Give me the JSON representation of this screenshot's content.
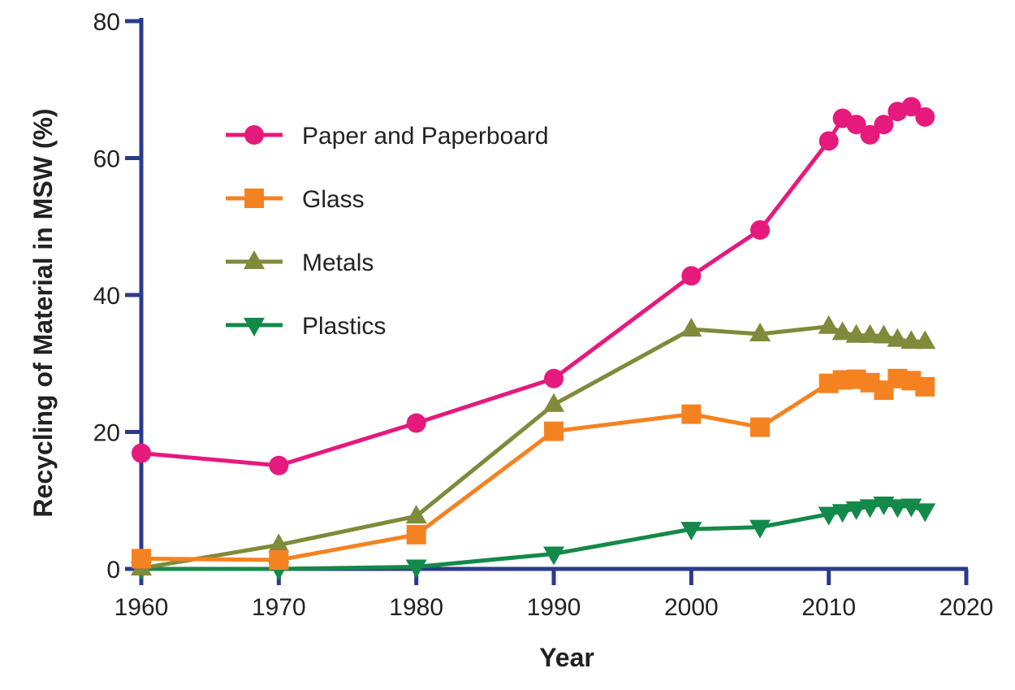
{
  "chart_data": {
    "type": "line",
    "title": "",
    "xlabel": "Year",
    "ylabel": "Recycling of Material in MSW (%)",
    "xlim": [
      1960,
      2020
    ],
    "ylim": [
      0,
      80
    ],
    "x_ticks": [
      "1960",
      "1970",
      "1980",
      "1990",
      "2000",
      "2010",
      "2020"
    ],
    "y_ticks": [
      "0",
      "20",
      "40",
      "60",
      "80"
    ],
    "grid": false,
    "legend_position": "top-left",
    "axis_color": "#2b3a8c",
    "series": [
      {
        "name": "Paper and Paperboard",
        "color": "#e6197d",
        "marker": "circle",
        "x": [
          1960,
          1970,
          1980,
          1990,
          2000,
          2005,
          2010,
          2011,
          2012,
          2013,
          2014,
          2015,
          2016,
          2017
        ],
        "values": [
          16.9,
          15.1,
          21.3,
          27.8,
          42.8,
          49.5,
          62.5,
          65.8,
          64.9,
          63.4,
          64.9,
          66.8,
          67.5,
          66.0
        ]
      },
      {
        "name": "Glass",
        "color": "#f58220",
        "marker": "square",
        "x": [
          1960,
          1970,
          1980,
          1990,
          2000,
          2005,
          2010,
          2011,
          2012,
          2013,
          2014,
          2015,
          2016,
          2017
        ],
        "values": [
          1.5,
          1.3,
          5.0,
          20.1,
          22.6,
          20.7,
          27.1,
          27.6,
          27.7,
          27.2,
          26.1,
          27.8,
          27.5,
          26.6
        ]
      },
      {
        "name": "Metals",
        "color": "#7f8a3a",
        "marker": "triangle-up",
        "x": [
          1960,
          1970,
          1980,
          1990,
          2000,
          2005,
          2010,
          2011,
          2012,
          2013,
          2014,
          2015,
          2016,
          2017
        ],
        "values": [
          0.1,
          3.5,
          7.7,
          24.0,
          35.0,
          34.3,
          35.4,
          34.5,
          34.1,
          34.1,
          34.0,
          33.5,
          33.2,
          33.2
        ]
      },
      {
        "name": "Plastics",
        "color": "#13894a",
        "marker": "triangle-down",
        "x": [
          1960,
          1970,
          1980,
          1990,
          2000,
          2005,
          2010,
          2011,
          2012,
          2013,
          2014,
          2015,
          2016,
          2017
        ],
        "values": [
          0.0,
          0.0,
          0.3,
          2.2,
          5.8,
          6.1,
          8.0,
          8.4,
          8.8,
          9.1,
          9.5,
          9.1,
          9.2,
          8.5
        ]
      }
    ]
  }
}
